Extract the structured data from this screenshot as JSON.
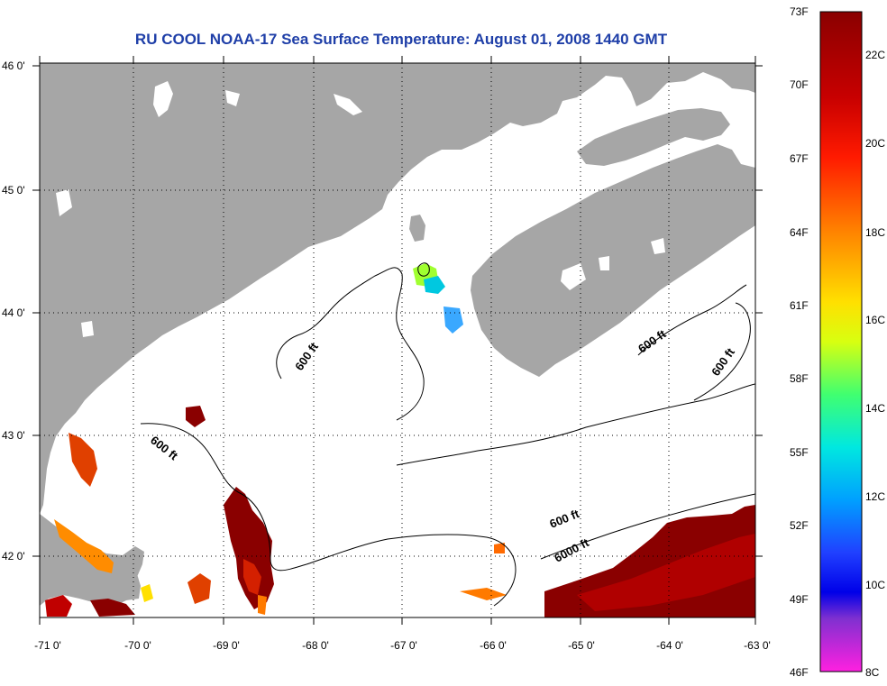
{
  "title": "RU COOL  NOAA-17  Sea Surface Temperature:  August 01, 2008 1440 GMT",
  "map": {
    "lon_labels": [
      "-71 0'",
      "-70 0'",
      "-69 0'",
      "-68 0'",
      "-67 0'",
      "-66 0'",
      "-65 0'",
      "-64 0'",
      "-63 0'"
    ],
    "lat_labels": [
      "46 0'",
      "45 0'",
      "44 0'",
      "43 0'",
      "42 0'"
    ],
    "contour_labels": [
      "600 ft",
      "600 ft",
      "600 ft",
      "600 ft",
      "600 ft",
      "6000 ft"
    ],
    "colors": {
      "land": "#a6a6a6",
      "cloud": "#ffffff",
      "frame": "#000000"
    }
  },
  "colorbar": {
    "fahrenheit_labels": [
      "73F",
      "70F",
      "67F",
      "64F",
      "61F",
      "58F",
      "55F",
      "52F",
      "49F",
      "46F"
    ],
    "celsius_labels": [
      "22C",
      "20C",
      "18C",
      "16C",
      "14C",
      "12C",
      "10C",
      "8C"
    ]
  }
}
